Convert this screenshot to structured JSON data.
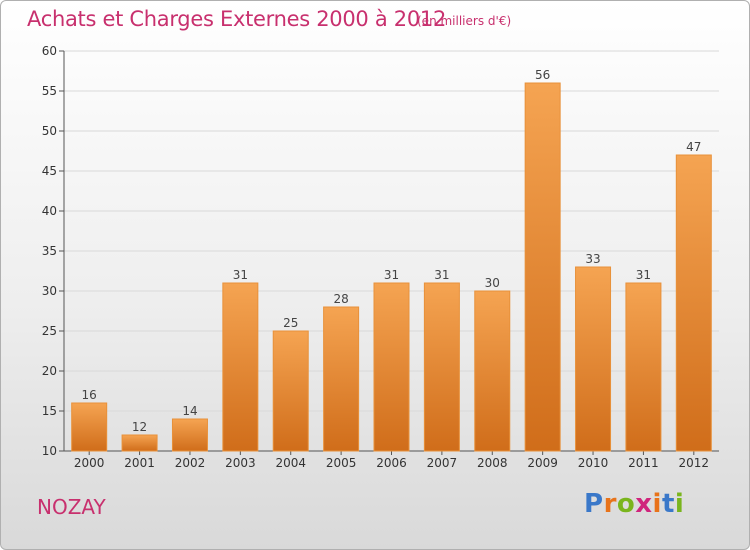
{
  "header": {
    "title": "Achats et Charges Externes 2000 à 2012",
    "subtitle": "(en milliers d'€)"
  },
  "commune": "NOZAY",
  "logo": {
    "text": "Proxiti",
    "letters": [
      "P",
      "r",
      "o",
      "x",
      "i",
      "t",
      "i"
    ],
    "colors": [
      "#3a78c9",
      "#e8731a",
      "#7ab51d",
      "#d0257c",
      "#e8731a",
      "#3a78c9",
      "#7ab51d"
    ]
  },
  "colors": {
    "bar_top": "#f5a452",
    "bar_bottom": "#d06d1a",
    "bar_edge": "#e8913a",
    "title": "#c8306e",
    "grid": "#d9d9d9"
  },
  "chart_data": {
    "type": "bar",
    "title": "Achats et Charges Externes 2000 à 2012",
    "subtitle": "(en milliers d'€)",
    "categories": [
      "2000",
      "2001",
      "2002",
      "2003",
      "2004",
      "2005",
      "2006",
      "2007",
      "2008",
      "2009",
      "2010",
      "2011",
      "2012"
    ],
    "values": [
      16,
      12,
      14,
      31,
      25,
      28,
      31,
      31,
      30,
      56,
      33,
      31,
      47
    ],
    "ylim": [
      10,
      60
    ],
    "yticks": [
      10,
      15,
      20,
      25,
      30,
      35,
      40,
      45,
      50,
      55,
      60
    ],
    "grid": "horizontal",
    "xlabel": "",
    "ylabel": ""
  }
}
